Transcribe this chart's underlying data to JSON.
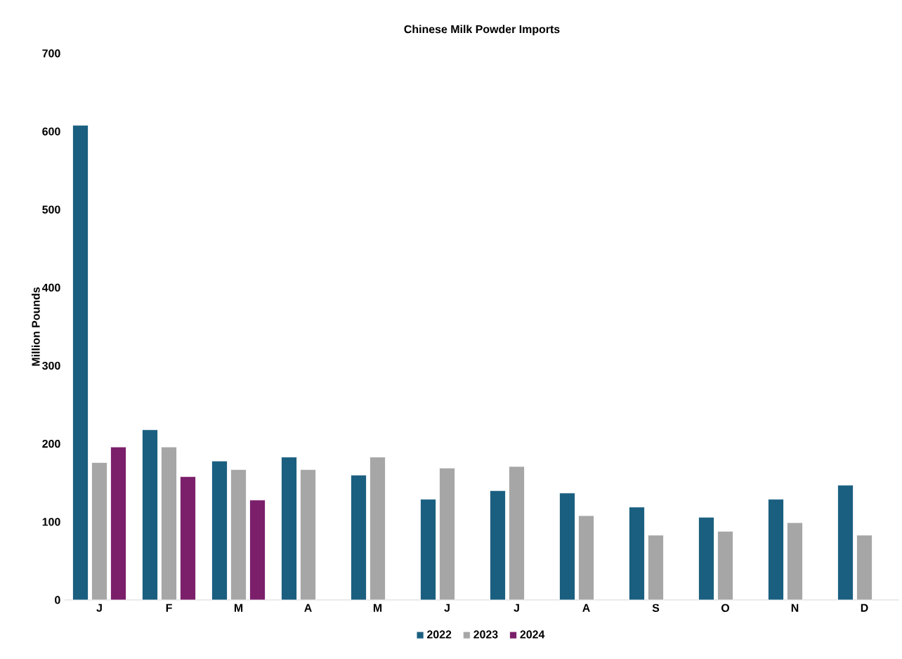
{
  "chart_data": {
    "type": "bar",
    "title": "Chinese Milk Powder Imports",
    "ylabel": "Million Pounds",
    "categories": [
      "J",
      "F",
      "M",
      "A",
      "M",
      "J",
      "J",
      "A",
      "S",
      "O",
      "N",
      "D"
    ],
    "series": [
      {
        "name": "2022",
        "color": "#1a5f80",
        "values": [
          608,
          218,
          178,
          183,
          160,
          129,
          140,
          137,
          119,
          106,
          129,
          147
        ]
      },
      {
        "name": "2023",
        "color": "#a6a6a6",
        "values": [
          176,
          196,
          167,
          167,
          183,
          169,
          171,
          108,
          83,
          88,
          99,
          83
        ]
      },
      {
        "name": "2024",
        "color": "#7b1f6b",
        "values": [
          196,
          158,
          128,
          null,
          null,
          null,
          null,
          null,
          null,
          null,
          null,
          null
        ]
      }
    ],
    "ylim": [
      0,
      700
    ],
    "yticks": [
      0,
      100,
      200,
      300,
      400,
      500,
      600,
      700
    ],
    "grid": false,
    "legend": "bottom"
  }
}
